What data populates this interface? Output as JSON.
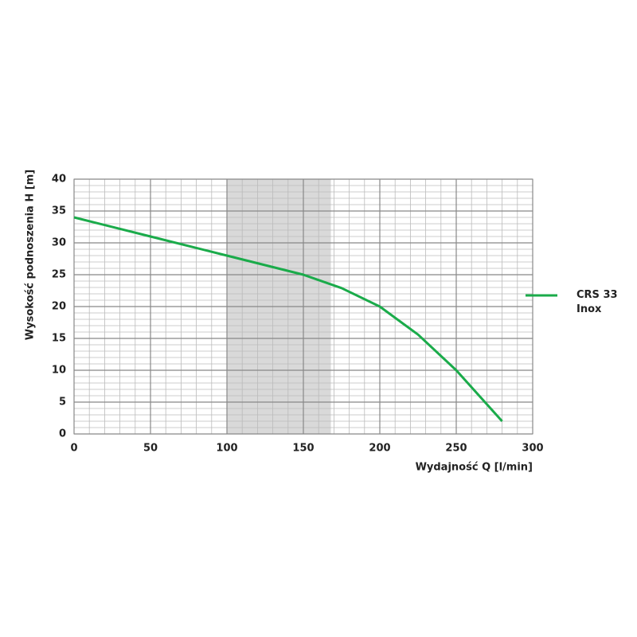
{
  "chart_data": {
    "type": "line",
    "x_label": "Wydajność Q [l/min]",
    "y_label": "Wysokość podnoszenia H [m]",
    "series": [
      {
        "name": "CRS 33 Inox",
        "color": "#1aab4a",
        "x": [
          0,
          50,
          100,
          150,
          175,
          200,
          225,
          250,
          265,
          280
        ],
        "values": [
          34,
          31,
          28,
          25,
          22.9,
          20,
          15.6,
          10,
          6,
          2
        ]
      }
    ],
    "xlim": [
      0,
      300
    ],
    "xticks": [
      0,
      50,
      100,
      150,
      200,
      250,
      300
    ],
    "ylim": [
      0,
      40
    ],
    "yticks": [
      0,
      5,
      10,
      15,
      20,
      25,
      30,
      35,
      40
    ],
    "minor_grid": {
      "x": 10,
      "y": 1
    },
    "highlight_range": [
      100,
      168
    ],
    "grid": true,
    "legend": "right"
  }
}
